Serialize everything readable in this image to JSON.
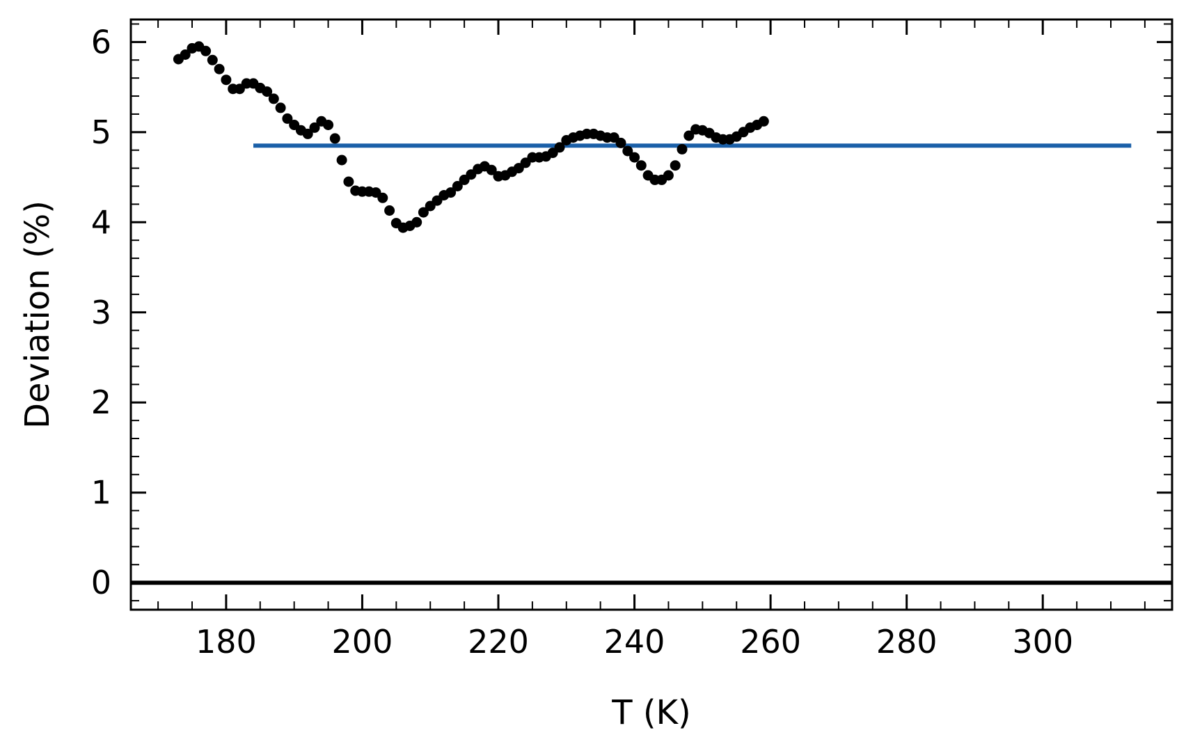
{
  "chart_data": {
    "type": "scatter",
    "title": "",
    "xlabel": "T (K)",
    "ylabel": "Deviation (%)",
    "xlim": [
      166,
      319
    ],
    "ylim": [
      -0.3,
      6.25
    ],
    "xticks": [
      180,
      200,
      220,
      240,
      260,
      280,
      300
    ],
    "xtick_labels": [
      "180",
      "200",
      "220",
      "240",
      "260",
      "280",
      "300"
    ],
    "yticks": [
      0,
      1,
      2,
      3,
      4,
      5,
      6
    ],
    "ytick_labels": [
      "0",
      "1",
      "2",
      "3",
      "4",
      "5",
      "6"
    ],
    "x_minor_step": 5,
    "y_minor_step": 0.2,
    "grid": false,
    "ticks_direction": "in",
    "ticks_on_all_sides": true,
    "series": [
      {
        "type": "scatter",
        "color": "#000000",
        "x": [
          173,
          174,
          175,
          176,
          177,
          178,
          179,
          180,
          181,
          182,
          183,
          184,
          185,
          186,
          187,
          188,
          189,
          190,
          191,
          192,
          193,
          194,
          195,
          196,
          197,
          198,
          199,
          200,
          201,
          202,
          203,
          204,
          205,
          206,
          207,
          208,
          209,
          210,
          211,
          212,
          213,
          214,
          215,
          216,
          217,
          218,
          219,
          220,
          221,
          222,
          223,
          224,
          225,
          226,
          227,
          228,
          229,
          230,
          231,
          232,
          233,
          234,
          235,
          236,
          237,
          238,
          239,
          240,
          241,
          242,
          243,
          244,
          245,
          246,
          247,
          248,
          249,
          250,
          251,
          252,
          253,
          254,
          255,
          256,
          257,
          258,
          259
        ],
        "y": [
          5.81,
          5.86,
          5.93,
          5.95,
          5.9,
          5.8,
          5.7,
          5.58,
          5.48,
          5.48,
          5.54,
          5.54,
          5.49,
          5.45,
          5.37,
          5.27,
          5.15,
          5.08,
          5.02,
          4.98,
          5.05,
          5.12,
          5.08,
          4.93,
          4.69,
          4.45,
          4.35,
          4.34,
          4.34,
          4.33,
          4.27,
          4.13,
          3.99,
          3.94,
          3.96,
          4.0,
          4.11,
          4.18,
          4.24,
          4.3,
          4.33,
          4.4,
          4.47,
          4.53,
          4.59,
          4.62,
          4.58,
          4.51,
          4.52,
          4.56,
          4.6,
          4.66,
          4.72,
          4.72,
          4.73,
          4.77,
          4.83,
          4.91,
          4.94,
          4.96,
          4.98,
          4.98,
          4.96,
          4.94,
          4.94,
          4.88,
          4.79,
          4.72,
          4.63,
          4.52,
          4.47,
          4.47,
          4.52,
          4.63,
          4.81,
          4.96,
          5.03,
          5.02,
          4.99,
          4.94,
          4.92,
          4.92,
          4.95,
          5.0,
          5.05,
          5.08,
          5.12
        ]
      },
      {
        "type": "line",
        "color": "#1a5fa8",
        "x": [
          184,
          313
        ],
        "y": [
          4.85,
          4.85
        ]
      },
      {
        "type": "line",
        "color": "#000000",
        "x": [
          166,
          319
        ],
        "y": [
          0,
          0
        ]
      }
    ]
  }
}
